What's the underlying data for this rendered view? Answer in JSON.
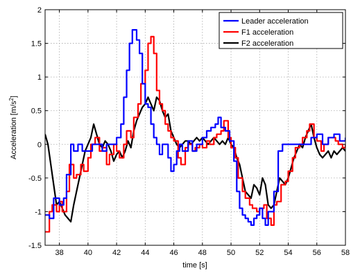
{
  "chart_data": {
    "type": "line",
    "xlabel": "time [s]",
    "ylabel_main": "Acceleration [m/s",
    "ylabel_sup": "2",
    "ylabel_end": "]",
    "xlim": [
      37,
      58
    ],
    "ylim": [
      -1.5,
      2
    ],
    "xticks": [
      38,
      40,
      42,
      44,
      46,
      48,
      50,
      52,
      54,
      56,
      58
    ],
    "xtick_labels": [
      "38",
      "40",
      "42",
      "44",
      "46",
      "48",
      "50",
      "52",
      "54",
      "56",
      "58"
    ],
    "yticks": [
      -1.5,
      -1,
      -0.5,
      0,
      0.5,
      1,
      1.5,
      2
    ],
    "ytick_labels": [
      "-1.5",
      "-1",
      "-0.5",
      "0",
      "0.5",
      "1",
      "1.5",
      "2"
    ],
    "grid": true,
    "legend_position": "top-right",
    "series": [
      {
        "name": "Leader acceleration",
        "color": "#0000ff",
        "step": true,
        "x": [
          37.0,
          37.3,
          37.6,
          38.0,
          38.3,
          38.5,
          38.8,
          39.0,
          39.3,
          39.6,
          40.0,
          40.3,
          40.6,
          41.0,
          41.3,
          41.6,
          42.0,
          42.3,
          42.5,
          42.7,
          42.9,
          43.1,
          43.4,
          43.6,
          43.8,
          44.0,
          44.2,
          44.4,
          44.6,
          44.8,
          45.0,
          45.2,
          45.4,
          45.6,
          45.8,
          46.0,
          46.2,
          46.4,
          46.6,
          47.0,
          47.3,
          47.6,
          48.0,
          48.3,
          48.6,
          48.9,
          49.1,
          49.3,
          49.6,
          49.9,
          50.2,
          50.4,
          50.6,
          50.8,
          51.0,
          51.2,
          51.4,
          51.6,
          51.8,
          52.0,
          52.2,
          52.4,
          52.6,
          53.0,
          53.3,
          53.6,
          54.0,
          54.4,
          54.8,
          55.2,
          55.6,
          56.0,
          56.4,
          56.8,
          57.2,
          57.6,
          58.0
        ],
        "y": [
          -1.05,
          -1.1,
          -0.8,
          -0.9,
          -0.8,
          -0.45,
          0.0,
          -0.1,
          0.0,
          -0.1,
          -0.1,
          0.0,
          0.0,
          -0.1,
          0.0,
          0.0,
          0.1,
          0.3,
          0.7,
          1.1,
          1.5,
          1.7,
          1.55,
          1.35,
          0.9,
          0.6,
          0.55,
          0.3,
          0.1,
          0.0,
          -0.15,
          0.0,
          0.0,
          -0.2,
          -0.4,
          -0.3,
          -0.1,
          0.0,
          -0.1,
          0.05,
          -0.1,
          0.0,
          0.1,
          0.2,
          0.25,
          0.3,
          0.4,
          0.25,
          0.2,
          0.05,
          -0.25,
          -0.7,
          -0.95,
          -1.05,
          -1.1,
          -1.15,
          -1.2,
          -1.1,
          -1.05,
          -0.95,
          -1.1,
          -1.2,
          -1.0,
          -0.7,
          -0.1,
          0.0,
          0.0,
          0.0,
          0.0,
          0.0,
          0.1,
          0.15,
          0.0,
          0.1,
          0.15,
          0.05,
          0.1
        ]
      },
      {
        "name": "F1 acceleration",
        "color": "#ff0000",
        "step": true,
        "x": [
          37.0,
          37.3,
          37.5,
          37.8,
          38.0,
          38.2,
          38.5,
          38.7,
          39.0,
          39.2,
          39.5,
          39.7,
          40.0,
          40.2,
          40.5,
          40.8,
          41.0,
          41.3,
          41.5,
          41.8,
          42.0,
          42.2,
          42.5,
          42.7,
          43.0,
          43.2,
          43.5,
          43.7,
          44.0,
          44.2,
          44.4,
          44.6,
          44.8,
          45.0,
          45.2,
          45.4,
          45.6,
          45.8,
          46.0,
          46.3,
          46.5,
          46.8,
          47.0,
          47.3,
          47.5,
          47.8,
          48.0,
          48.3,
          48.5,
          48.8,
          49.0,
          49.3,
          49.5,
          49.8,
          50.0,
          50.3,
          50.5,
          50.8,
          51.0,
          51.3,
          51.5,
          51.8,
          52.0,
          52.3,
          52.5,
          52.8,
          53.0,
          53.2,
          53.5,
          53.8,
          54.0,
          54.3,
          54.5,
          54.8,
          55.0,
          55.3,
          55.5,
          55.8,
          56.0,
          56.3,
          56.5,
          56.8,
          57.0,
          57.3,
          57.5,
          57.8,
          58.0
        ],
        "y": [
          -1.3,
          -1.0,
          -0.9,
          -1.0,
          -0.85,
          -1.0,
          -0.7,
          -0.3,
          -0.5,
          -0.45,
          -0.3,
          -0.4,
          -0.2,
          0.0,
          0.1,
          -0.1,
          -0.05,
          -0.3,
          -0.15,
          0.0,
          -0.1,
          -0.2,
          0.0,
          0.2,
          0.1,
          0.4,
          0.6,
          0.9,
          1.1,
          1.5,
          1.6,
          1.35,
          0.8,
          0.6,
          0.5,
          0.3,
          0.2,
          0.1,
          0.05,
          -0.2,
          -0.3,
          -0.05,
          0.0,
          -0.1,
          -0.05,
          0.0,
          -0.05,
          0.05,
          0.0,
          0.1,
          0.15,
          0.2,
          0.35,
          0.1,
          -0.05,
          -0.2,
          -0.5,
          -0.7,
          -0.8,
          -0.9,
          -0.95,
          -1.0,
          -0.95,
          -0.9,
          -1.1,
          -1.2,
          -0.9,
          -0.85,
          -0.6,
          -0.55,
          -0.4,
          -0.2,
          -0.05,
          0.0,
          0.1,
          0.2,
          0.3,
          0.1,
          0.05,
          -0.1,
          0.0,
          0.1,
          0.1,
          0.05,
          0.0,
          -0.05,
          0.0
        ]
      },
      {
        "name": "F2 acceleration",
        "color": "#000000",
        "step": false,
        "x": [
          37.0,
          37.2,
          37.4,
          37.6,
          37.8,
          38.0,
          38.2,
          38.4,
          38.6,
          38.8,
          39.0,
          39.2,
          39.4,
          39.6,
          39.8,
          40.0,
          40.2,
          40.4,
          40.6,
          40.8,
          41.0,
          41.2,
          41.4,
          41.6,
          41.8,
          42.0,
          42.2,
          42.4,
          42.6,
          42.8,
          43.0,
          43.2,
          43.4,
          43.6,
          43.8,
          44.0,
          44.2,
          44.4,
          44.6,
          44.8,
          45.0,
          45.2,
          45.4,
          45.6,
          45.8,
          46.0,
          46.2,
          46.4,
          46.6,
          46.8,
          47.0,
          47.2,
          47.4,
          47.6,
          47.8,
          48.0,
          48.2,
          48.4,
          48.6,
          48.8,
          49.0,
          49.2,
          49.4,
          49.6,
          49.8,
          50.0,
          50.2,
          50.4,
          50.6,
          50.8,
          51.0,
          51.2,
          51.4,
          51.6,
          51.8,
          52.0,
          52.2,
          52.4,
          52.6,
          52.8,
          53.0,
          53.2,
          53.4,
          53.6,
          53.8,
          54.0,
          54.2,
          54.4,
          54.6,
          54.8,
          55.0,
          55.2,
          55.4,
          55.6,
          55.8,
          56.0,
          56.2,
          56.4,
          56.6,
          56.8,
          57.0,
          57.2,
          57.4,
          57.6,
          57.8,
          58.0
        ],
        "y": [
          0.15,
          0.0,
          -0.3,
          -0.6,
          -0.9,
          -0.85,
          -0.95,
          -1.05,
          -1.1,
          -1.15,
          -0.9,
          -0.7,
          -0.5,
          -0.3,
          -0.1,
          0.0,
          0.1,
          0.3,
          0.15,
          0.0,
          -0.05,
          0.05,
          0.0,
          -0.1,
          -0.25,
          -0.15,
          -0.1,
          -0.2,
          -0.1,
          0.05,
          -0.05,
          0.2,
          0.35,
          0.45,
          0.55,
          0.6,
          0.7,
          0.6,
          0.5,
          0.7,
          0.65,
          0.5,
          0.4,
          0.45,
          0.2,
          0.1,
          0.0,
          -0.05,
          0.0,
          0.05,
          0.05,
          0.0,
          0.05,
          0.1,
          0.05,
          0.1,
          0.05,
          0.0,
          0.05,
          0.1,
          0.05,
          0.0,
          0.05,
          0.0,
          0.1,
          0.0,
          -0.05,
          -0.2,
          -0.3,
          -0.5,
          -0.7,
          -0.75,
          -0.8,
          -0.6,
          -0.65,
          -0.75,
          -0.5,
          -0.6,
          -0.9,
          -0.95,
          -0.9,
          -0.7,
          -0.5,
          -0.55,
          -0.6,
          -0.5,
          -0.35,
          -0.2,
          -0.1,
          0.0,
          -0.05,
          0.1,
          0.2,
          0.3,
          0.1,
          -0.05,
          -0.15,
          -0.2,
          -0.15,
          -0.1,
          -0.2,
          -0.1,
          -0.15,
          -0.1,
          -0.05,
          -0.1
        ]
      }
    ]
  }
}
